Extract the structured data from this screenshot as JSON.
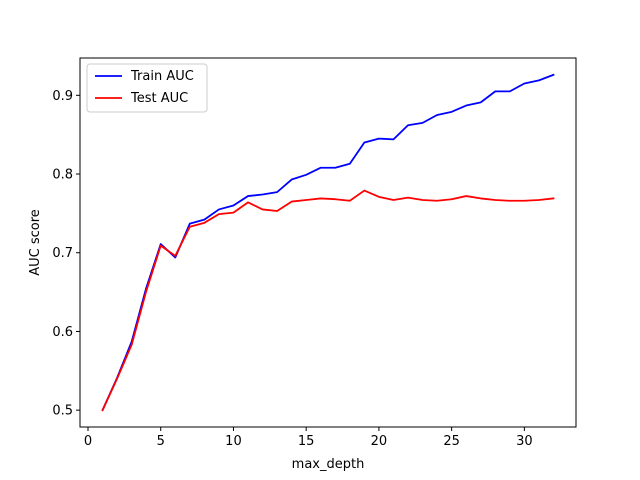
{
  "chart_data": {
    "type": "line",
    "title": "",
    "xlabel": "max_depth",
    "ylabel": "AUC score",
    "xlim": [
      -0.55,
      33.55
    ],
    "ylim": [
      0.4786,
      0.9474
    ],
    "xticks": [
      0,
      5,
      10,
      15,
      20,
      25,
      30
    ],
    "yticks": [
      0.5,
      0.6,
      0.7,
      0.8,
      0.9
    ],
    "xtick_labels": [
      "0",
      "5",
      "10",
      "15",
      "20",
      "25",
      "30"
    ],
    "ytick_labels": [
      "0.5",
      "0.6",
      "0.7",
      "0.8",
      "0.9"
    ],
    "grid": false,
    "legend_position": "upper-left",
    "x": [
      1,
      2,
      3,
      4,
      5,
      6,
      7,
      8,
      9,
      10,
      11,
      12,
      13,
      14,
      15,
      16,
      17,
      18,
      19,
      20,
      21,
      22,
      23,
      24,
      25,
      26,
      27,
      28,
      29,
      30,
      31,
      32
    ],
    "series": [
      {
        "name": "Train AUC",
        "color": "#0000ff",
        "values": [
          0.5,
          0.541,
          0.587,
          0.655,
          0.711,
          0.694,
          0.737,
          0.742,
          0.755,
          0.76,
          0.772,
          0.774,
          0.777,
          0.793,
          0.799,
          0.808,
          0.808,
          0.813,
          0.84,
          0.845,
          0.844,
          0.862,
          0.865,
          0.875,
          0.879,
          0.887,
          0.891,
          0.905,
          0.905,
          0.915,
          0.919,
          0.926
        ]
      },
      {
        "name": "Test AUC",
        "color": "#ff0000",
        "values": [
          0.5,
          0.54,
          0.583,
          0.651,
          0.709,
          0.696,
          0.733,
          0.738,
          0.749,
          0.751,
          0.764,
          0.755,
          0.753,
          0.765,
          0.767,
          0.769,
          0.768,
          0.766,
          0.779,
          0.771,
          0.767,
          0.77,
          0.767,
          0.766,
          0.768,
          0.772,
          0.769,
          0.767,
          0.766,
          0.766,
          0.767,
          0.769
        ]
      }
    ]
  }
}
